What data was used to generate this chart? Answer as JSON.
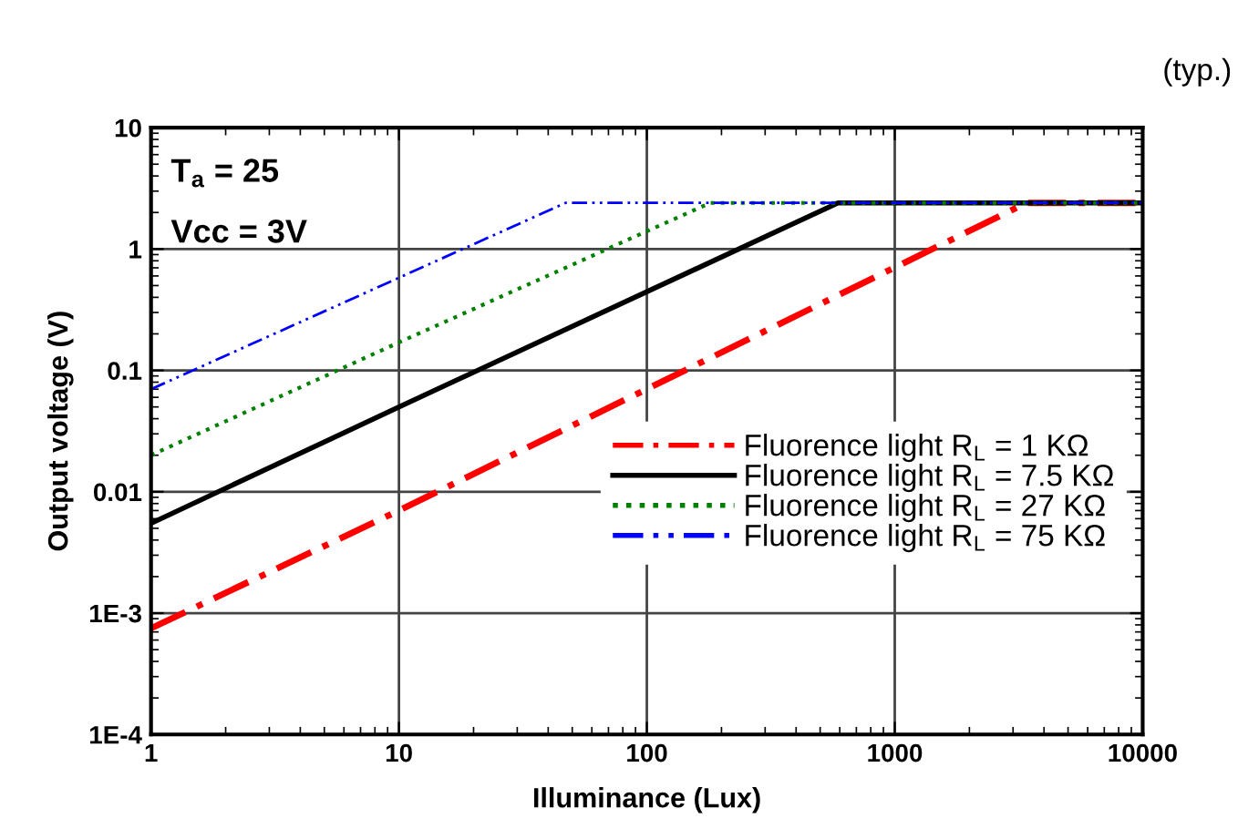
{
  "chart_data": {
    "type": "line",
    "xlabel": "Illuminance (Lux)",
    "ylabel": "Output voltage (V)",
    "annotations": [
      "(typ.)",
      "T$_{a}$ = 25",
      "Vcc = 3V"
    ],
    "log": "xy",
    "xlim": [
      1,
      10000
    ],
    "ylim": [
      0.0001,
      10
    ],
    "xticks": [
      1,
      10,
      100,
      1000,
      10000
    ],
    "yticks": [
      {
        "value": 0.0001,
        "label": "1E-4"
      },
      {
        "value": 0.001,
        "label": "1E-3"
      },
      0.01,
      0.1,
      1,
      10
    ],
    "grid": true,
    "legend": "bottom right",
    "series": [
      {
        "name": "Fluorence light R$_{L}$ = 1 KΩ",
        "color": "#ff0000",
        "line_style": "dashdot",
        "x": [
          1,
          10,
          3400,
          10000
        ],
        "values": [
          0.00075,
          0.007,
          2.4,
          2.4
        ]
      },
      {
        "name": "Fluorence light R$_{L}$ = 7.5 KΩ",
        "color": "#000000",
        "line_style": "solid",
        "x": [
          1,
          10,
          590,
          10000
        ],
        "values": [
          0.0055,
          0.05,
          2.4,
          2.4
        ]
      },
      {
        "name": "Fluorence light R$_{L}$ = 27 KΩ",
        "color": "#008000",
        "line_style": "dotted",
        "x": [
          1,
          10,
          180,
          10000
        ],
        "values": [
          0.02,
          0.17,
          2.4,
          2.4
        ]
      },
      {
        "name": "Fluorence light R$_{L}$ = 75 KΩ",
        "color": "#0000ff",
        "line_style": "dashdotdot",
        "x": [
          1,
          10,
          47,
          10000
        ],
        "values": [
          0.07,
          0.58,
          2.4,
          2.4
        ]
      }
    ]
  }
}
